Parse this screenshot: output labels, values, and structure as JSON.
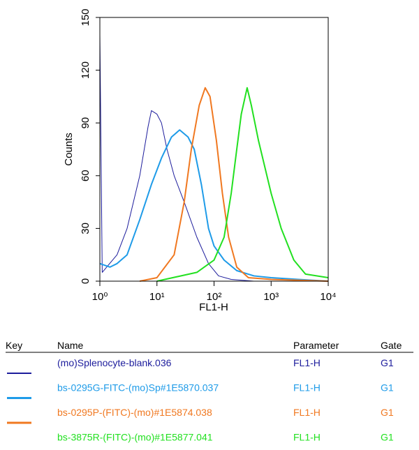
{
  "chart_data": {
    "type": "line",
    "log_x": true,
    "x_label": "FL1-H",
    "y_label": "Counts",
    "xlim": [
      1,
      10000
    ],
    "xticks": [
      {
        "value": 1,
        "label": "10⁰"
      },
      {
        "value": 10,
        "label": "10¹"
      },
      {
        "value": 100,
        "label": "10²"
      },
      {
        "value": 1000,
        "label": "10³"
      },
      {
        "value": 10000,
        "label": "10⁴"
      }
    ],
    "ylim": [
      0,
      150
    ],
    "yticks": [
      0,
      30,
      60,
      90,
      120,
      150
    ],
    "series": [
      {
        "name": "(mo)Splenocyte-blank.036",
        "color": "#1c1c9c",
        "width": 1,
        "x": [
          1,
          1.1,
          2,
          3,
          5,
          7,
          8,
          10,
          12,
          15,
          20,
          30,
          50,
          80,
          120,
          200,
          500,
          10000
        ],
        "values": [
          140,
          5,
          15,
          30,
          60,
          88,
          97,
          95,
          90,
          75,
          60,
          45,
          25,
          10,
          3,
          1,
          0,
          0
        ]
      },
      {
        "name": "bs-0295G-FITC-(mo)Sp#1E5870.037",
        "color": "#1e9be8",
        "width": 2,
        "x": [
          1,
          1.5,
          2,
          3,
          5,
          8,
          12,
          18,
          25,
          35,
          45,
          60,
          80,
          100,
          150,
          250,
          500,
          1000,
          3000,
          10000
        ],
        "values": [
          10,
          8,
          10,
          15,
          35,
          55,
          70,
          82,
          86,
          82,
          75,
          55,
          30,
          20,
          12,
          6,
          3,
          2,
          1,
          0
        ]
      },
      {
        "name": "bs-0295P-(FITC)-(mo)#1E5874.038",
        "color": "#f07820",
        "width": 2,
        "x": [
          5,
          10,
          20,
          30,
          40,
          55,
          70,
          85,
          110,
          140,
          180,
          250,
          400,
          1000,
          10000
        ],
        "values": [
          0,
          2,
          15,
          45,
          75,
          100,
          110,
          105,
          80,
          50,
          25,
          8,
          2,
          1,
          0
        ]
      },
      {
        "name": "bs-3875R-(FITC)-(mo)#1E5877.041",
        "color": "#22e020",
        "width": 2,
        "x": [
          10,
          50,
          100,
          150,
          200,
          250,
          300,
          380,
          450,
          600,
          1000,
          1500,
          2500,
          4000,
          10000
        ],
        "values": [
          0,
          5,
          12,
          25,
          50,
          75,
          95,
          110,
          100,
          80,
          50,
          30,
          12,
          4,
          2
        ]
      }
    ]
  },
  "legend_table": {
    "headers": [
      "Key",
      "Name",
      "Parameter",
      "Gate"
    ],
    "rows": [
      {
        "parameter": "FL1-H",
        "gate": "G1"
      },
      {
        "parameter": "FL1-H",
        "gate": "G1"
      },
      {
        "parameter": "FL1-H",
        "gate": "G1"
      },
      {
        "parameter": "FL1-H",
        "gate": "G1"
      }
    ]
  }
}
